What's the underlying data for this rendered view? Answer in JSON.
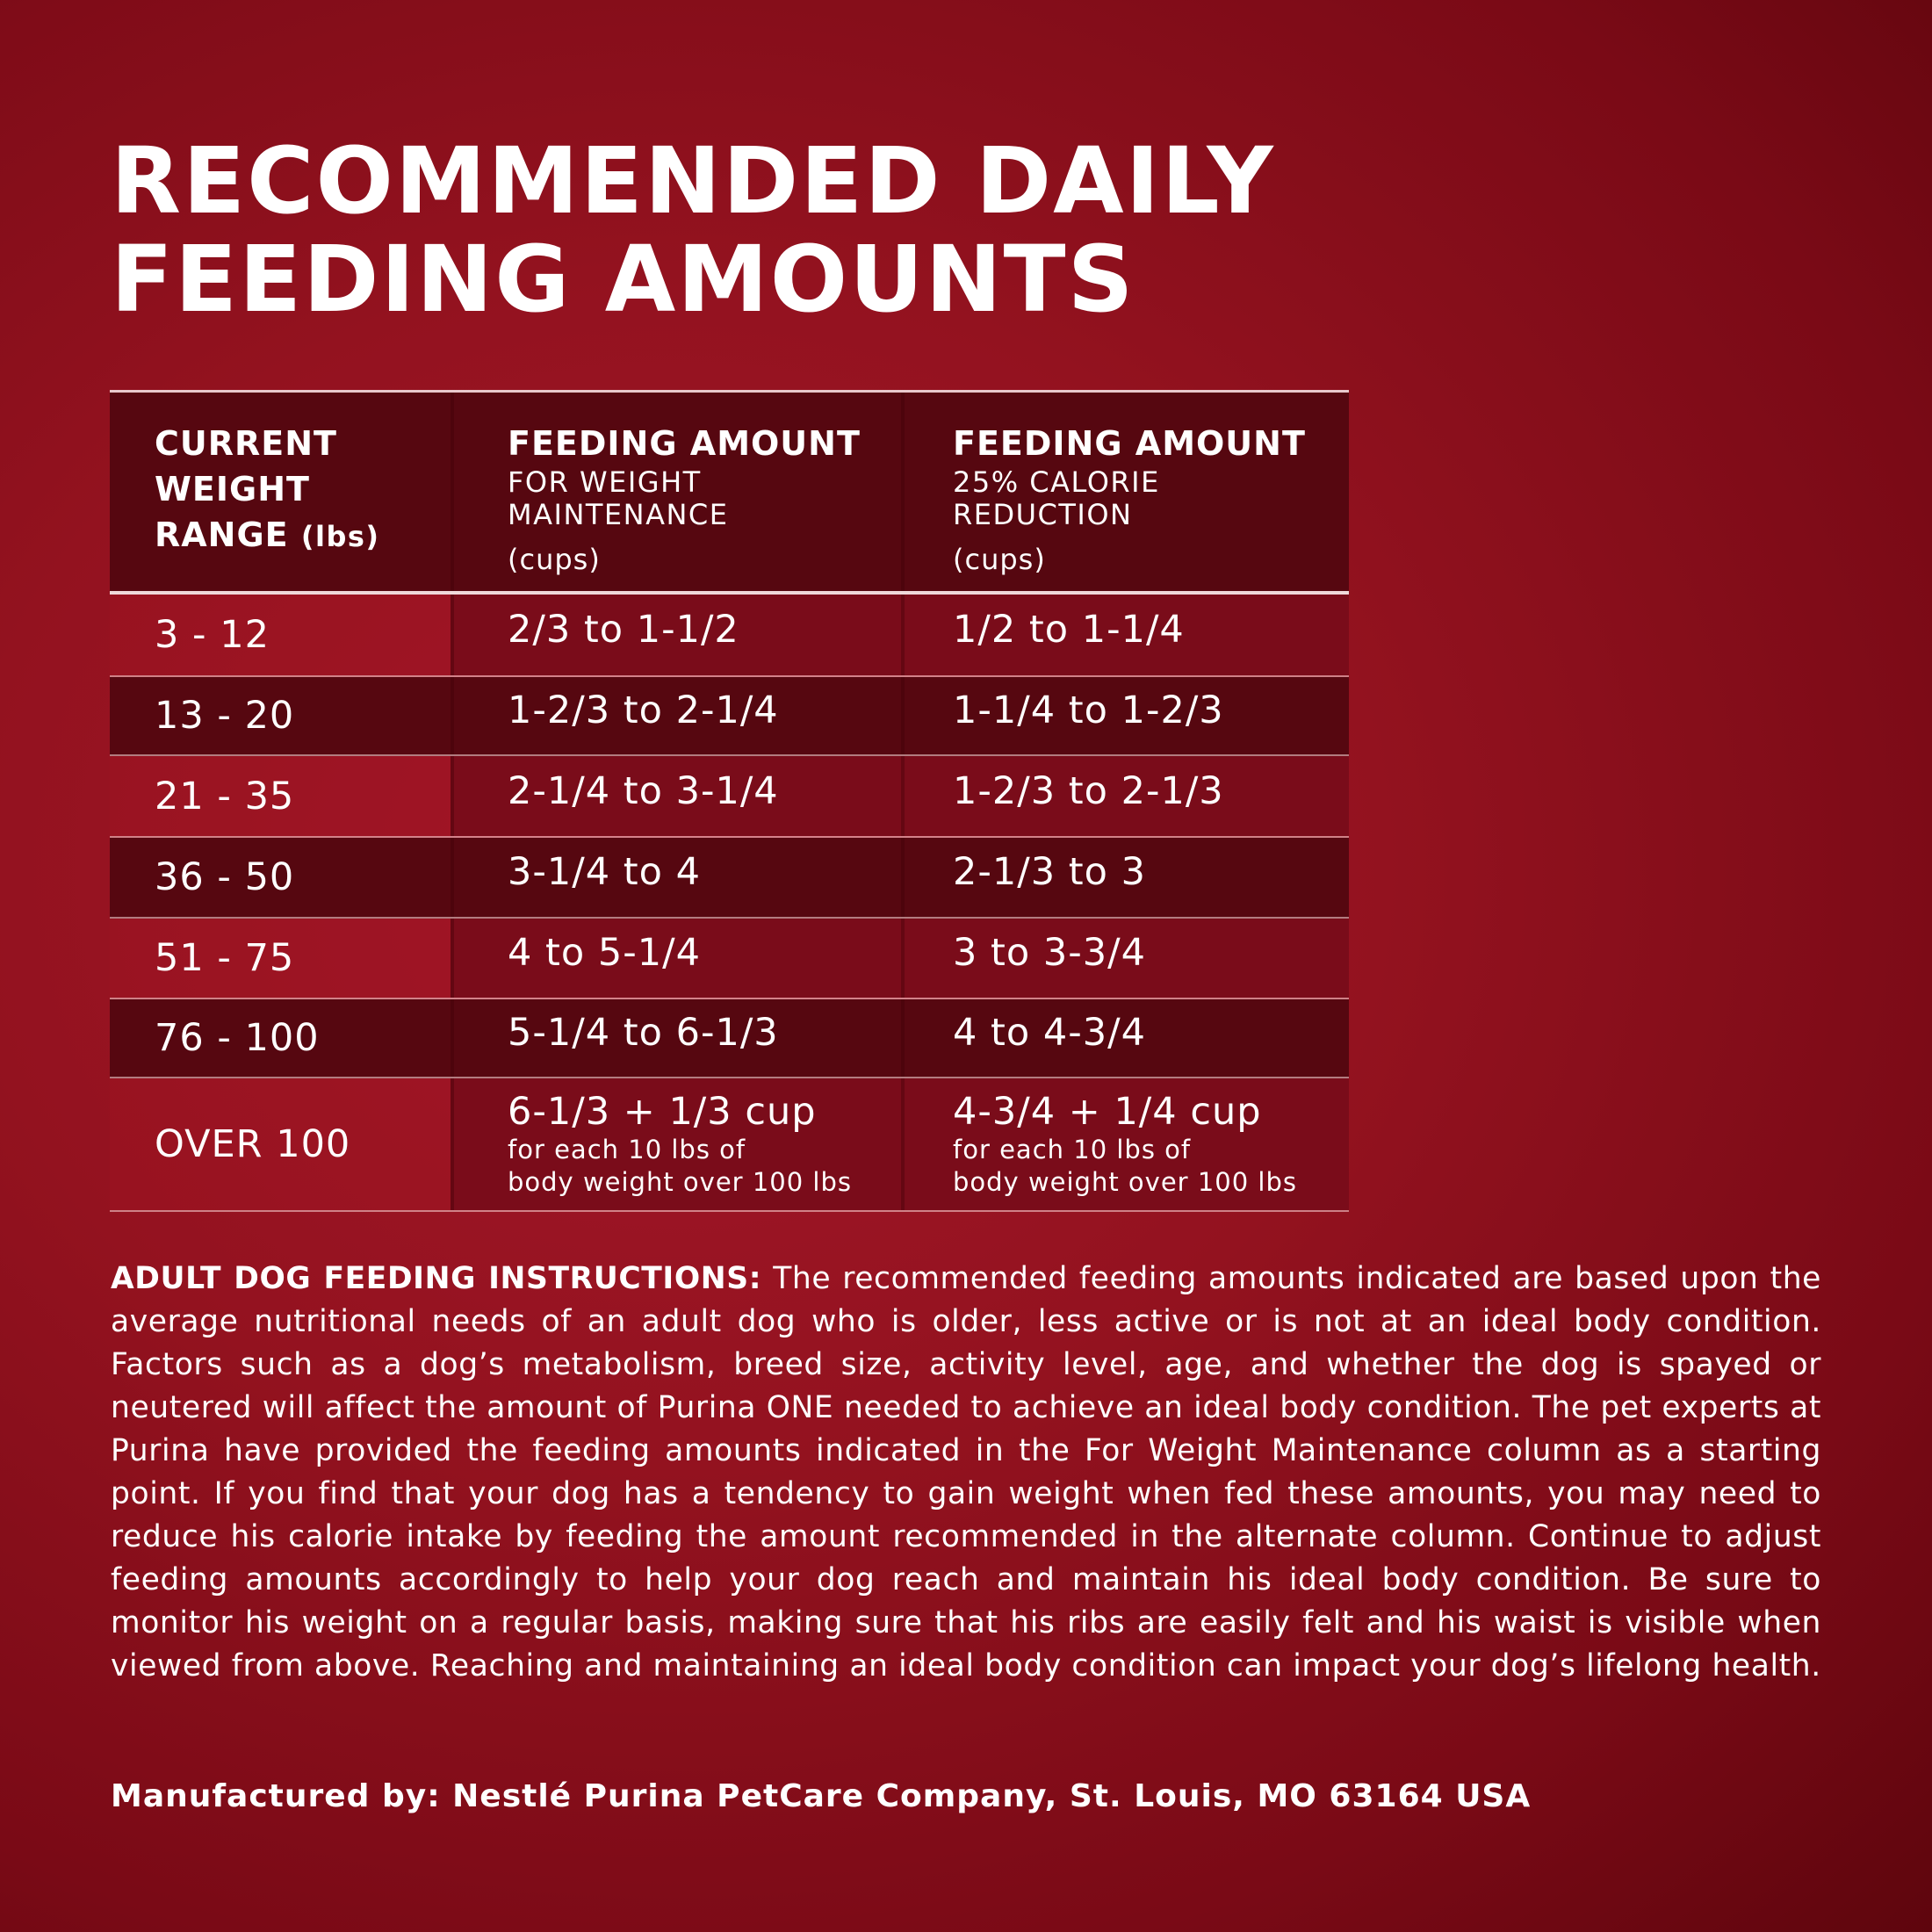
{
  "title": [
    "RECOMMENDED DAILY",
    "FEEDING AMOUNTS"
  ],
  "table": {
    "headers": [
      {
        "lines": [
          "CURRENT",
          "WEIGHT",
          "RANGE"
        ],
        "unit": "(lbs)"
      },
      {
        "title": "FEEDING AMOUNT",
        "sub": [
          "FOR WEIGHT",
          "MAINTENANCE"
        ],
        "unit": "(cups)"
      },
      {
        "title": "FEEDING AMOUNT",
        "sub": [
          "25% CALORIE",
          "REDUCTION"
        ],
        "unit": "(cups)"
      }
    ],
    "rows": [
      [
        "3 - 12",
        "2/3 to 1-1/2",
        "1/2 to 1-1/4"
      ],
      [
        "13 - 20",
        "1-2/3 to 2-1/4",
        "1-1/4 to 1-2/3"
      ],
      [
        "21 - 35",
        "2-1/4 to 3-1/4",
        "1-2/3 to 2-1/3"
      ],
      [
        "36 - 50",
        "3-1/4 to 4",
        "2-1/3 to 3"
      ],
      [
        "51 - 75",
        "4 to 5-1/4",
        "3 to 3-3/4"
      ],
      [
        "76 - 100",
        "5-1/4 to 6-1/3",
        "4 to 4-3/4"
      ],
      [
        "OVER 100",
        {
          "main": "6-1/3 + 1/3 cup",
          "note": [
            "for each 10 lbs of",
            "body weight over 100 lbs"
          ]
        },
        {
          "main": "4-3/4 + 1/4 cup",
          "note": [
            "for each 10 lbs of",
            "body weight over 100 lbs"
          ]
        }
      ]
    ]
  },
  "instructions": {
    "label": "ADULT DOG FEEDING INSTRUCTIONS:",
    "text": "The recommended feeding amounts indicated are based upon the average nutritional needs of an adult dog who is older, less active or is not at an ideal body condition. Factors such as a dog’s metabolism, breed size, activity level, age, and whether the dog is spayed or neutered will affect the amount of Purina ONE needed to achieve an ideal body condition. The pet experts at Purina have provided the feeding amounts indicated in the For Weight Maintenance column as a starting point. If you find that your dog has a tendency to gain weight when fed these amounts, you may need to reduce his calorie intake by feeding the amount recommended in the alternate column. Continue to adjust feeding amounts accordingly to help your dog reach and maintain his ideal body condition. Be sure to monitor his weight on a regular basis, making sure that his ribs are easily felt and his waist is visible when viewed from above. Reaching and maintaining an ideal body condition can impact your dog’s lifelong health."
  },
  "footer": "Manufactured by: Nestlé Purina PetCare Company, St. Louis, MO 63164 USA"
}
